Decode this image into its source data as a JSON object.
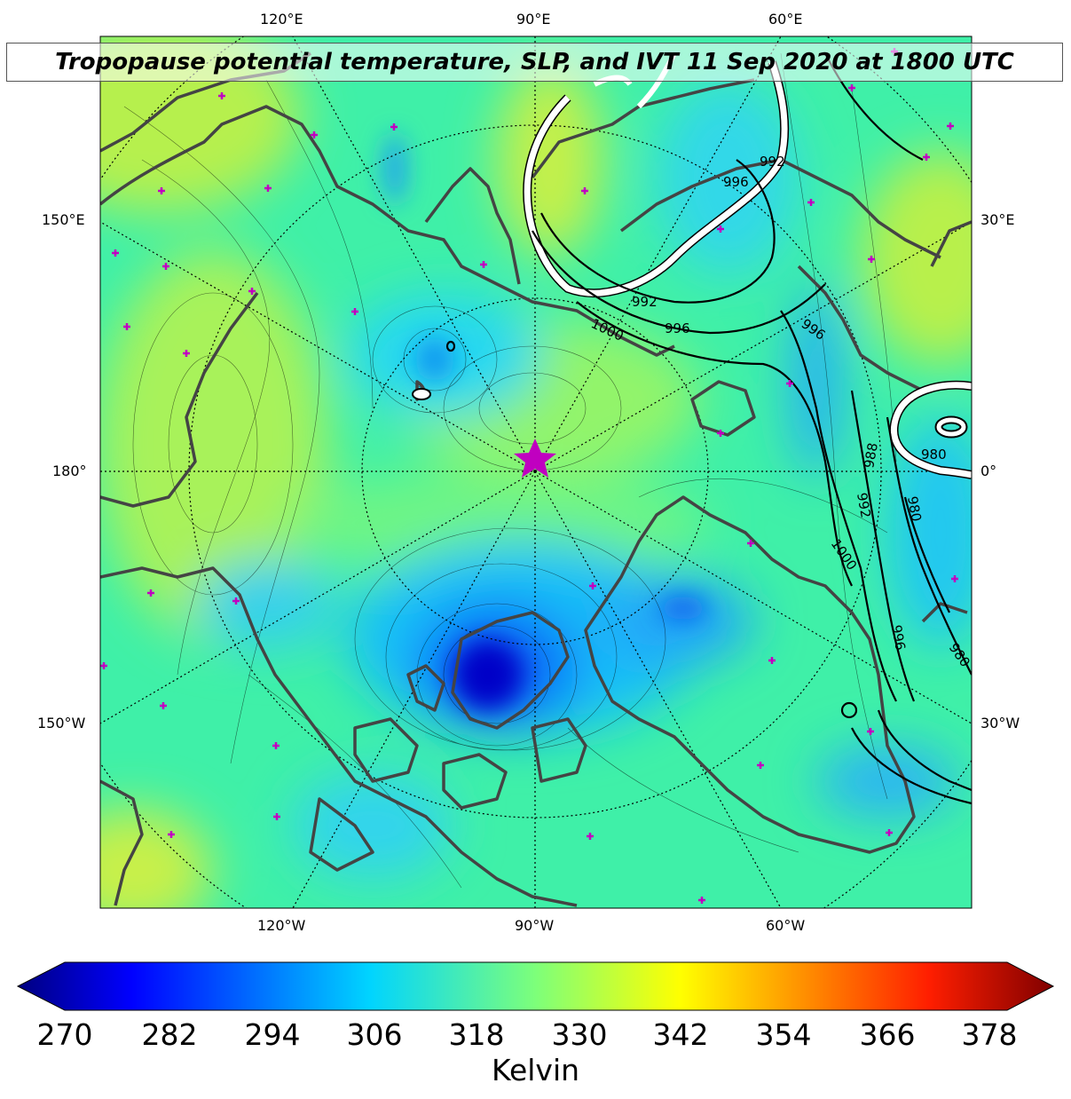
{
  "title": "Tropopause potential temperature, SLP, and IVT 11 Sep 2020 at 1800 UTC",
  "longitude_labels": {
    "top": [
      "120°E",
      "90°E",
      "60°E"
    ],
    "bottom": [
      "120°W",
      "90°W",
      "60°W"
    ],
    "left": [
      "150°E",
      "180°",
      "150°W"
    ],
    "right": [
      "30°E",
      "0°",
      "30°W"
    ]
  },
  "slp_contour_labels": [
    "992",
    "996",
    "992",
    "996",
    "1000",
    "996",
    "988",
    "980",
    "980",
    "992",
    "1000",
    "996",
    "980"
  ],
  "colorbar": {
    "ticks": [
      "270",
      "282",
      "294",
      "306",
      "318",
      "330",
      "342",
      "354",
      "366",
      "378"
    ],
    "label": "Kelvin",
    "range": [
      270,
      378
    ],
    "colormap": "jet",
    "extend": "both"
  },
  "colors": {
    "coastline": "#444444",
    "slp_contour": "#000000",
    "ivt_contour": "#ffffff",
    "marker": "#c000c0"
  },
  "markers": {
    "pole_marker": "star",
    "sites": "plus"
  }
}
